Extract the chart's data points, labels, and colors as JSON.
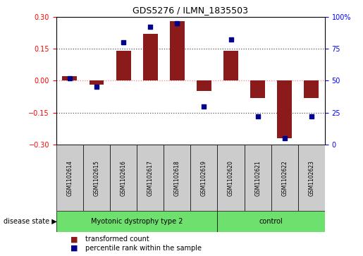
{
  "title": "GDS5276 / ILMN_1835503",
  "samples": [
    "GSM1102614",
    "GSM1102615",
    "GSM1102616",
    "GSM1102617",
    "GSM1102618",
    "GSM1102619",
    "GSM1102620",
    "GSM1102621",
    "GSM1102622",
    "GSM1102623"
  ],
  "red_bars": [
    0.02,
    -0.02,
    0.14,
    0.22,
    0.28,
    -0.05,
    0.14,
    -0.08,
    -0.27,
    -0.08
  ],
  "blue_dots": [
    52,
    45,
    80,
    92,
    95,
    30,
    82,
    22,
    5,
    22
  ],
  "ylim_left": [
    -0.3,
    0.3
  ],
  "ylim_right": [
    0,
    100
  ],
  "yticks_left": [
    -0.3,
    -0.15,
    0,
    0.15,
    0.3
  ],
  "yticks_right": [
    0,
    25,
    50,
    75,
    100
  ],
  "disease_groups": [
    {
      "label": "Myotonic dystrophy type 2",
      "start": 0,
      "end": 6,
      "color": "#6EE06E"
    },
    {
      "label": "control",
      "start": 6,
      "end": 10,
      "color": "#6EE06E"
    }
  ],
  "bar_color": "#8B1A1A",
  "dot_color": "#00008B",
  "zero_line_color": "#FF8080",
  "dotted_line_color": "#555555",
  "bg_plot": "#FFFFFF",
  "bg_label_box": "#CCCCCC",
  "legend_red_label": "transformed count",
  "legend_blue_label": "percentile rank within the sample",
  "disease_state_label": "disease state"
}
